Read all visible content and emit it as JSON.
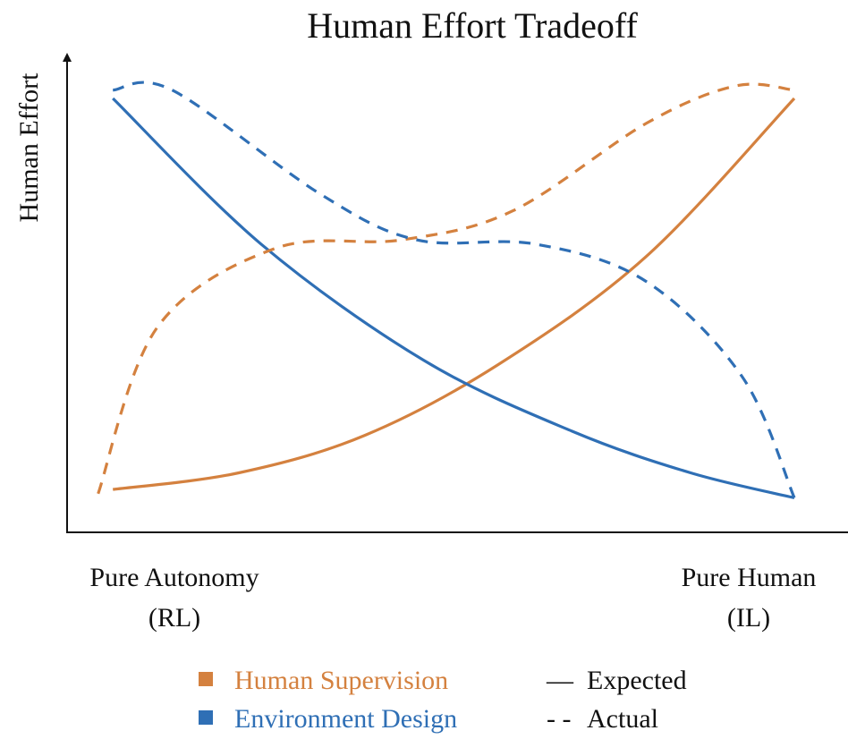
{
  "chart_data": {
    "type": "line",
    "title": "Human Effort Tradeoff",
    "xlabel": "",
    "ylabel": "Human Effort",
    "x_ticks": [
      {
        "line1": "Pure Autonomy",
        "line2": "(RL)"
      },
      {
        "line1": "Pure Human",
        "line2": "(IL)"
      }
    ],
    "xlim": [
      0,
      1
    ],
    "ylim": [
      0,
      1
    ],
    "axis_ticks_shown": false,
    "grid": false,
    "legend_position": "bottom-center",
    "colors": {
      "human_supervision": "#d4813f",
      "environment_design": "#2f6fb5",
      "axis": "#111111"
    },
    "legend": {
      "series": [
        {
          "label": "Human Supervision",
          "color": "#d4813f"
        },
        {
          "label": "Environment Design",
          "color": "#2f6fb5"
        }
      ],
      "line_styles": [
        {
          "symbol": "—",
          "label": "Expected"
        },
        {
          "symbol": "- -",
          "label": "Actual"
        }
      ]
    },
    "series": [
      {
        "color": "#d4813f",
        "style": "solid",
        "points": [
          [
            0.08,
            0.06
          ],
          [
            0.25,
            0.1
          ],
          [
            0.42,
            0.19
          ],
          [
            0.6,
            0.36
          ],
          [
            0.8,
            0.62
          ],
          [
            1.0,
            1.0
          ]
        ]
      },
      {
        "color": "#2f6fb5",
        "style": "solid",
        "points": [
          [
            0.08,
            1.0
          ],
          [
            0.28,
            0.65
          ],
          [
            0.5,
            0.37
          ],
          [
            0.7,
            0.2
          ],
          [
            0.86,
            0.1
          ],
          [
            1.0,
            0.04
          ]
        ]
      },
      {
        "color": "#d4813f",
        "style": "dashed",
        "points": [
          [
            0.06,
            0.05
          ],
          [
            0.14,
            0.45
          ],
          [
            0.3,
            0.64
          ],
          [
            0.47,
            0.66
          ],
          [
            0.62,
            0.73
          ],
          [
            0.8,
            0.94
          ],
          [
            0.92,
            1.03
          ],
          [
            1.0,
            1.02
          ]
        ]
      },
      {
        "color": "#2f6fb5",
        "style": "dashed",
        "points": [
          [
            0.08,
            1.02
          ],
          [
            0.16,
            1.02
          ],
          [
            0.36,
            0.77
          ],
          [
            0.49,
            0.66
          ],
          [
            0.65,
            0.65
          ],
          [
            0.8,
            0.56
          ],
          [
            0.93,
            0.33
          ],
          [
            1.0,
            0.04
          ]
        ]
      }
    ]
  }
}
